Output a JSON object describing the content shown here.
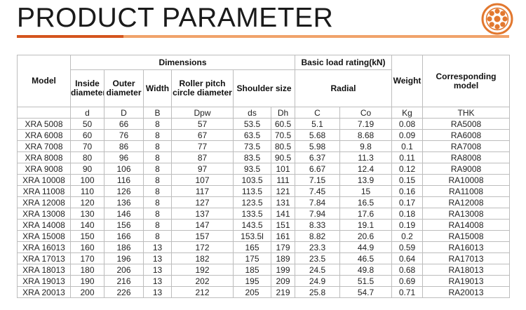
{
  "header": {
    "title": "PRODUCT PARAMETER",
    "accent_dark": "#d4551e",
    "accent_light": "#f0a36b",
    "logo_icon": "orange-bearing-logo-icon"
  },
  "table": {
    "group_headers": {
      "model": "Model",
      "dimensions": "Dimensions",
      "basic_load": "Basic load rating(kN)",
      "weight": "Weight",
      "corresponding": "Corresponding model"
    },
    "sub_headers": {
      "inside": "Inside diameter",
      "outer": "Outer diameter",
      "width": "Width",
      "roller": "Roller pitch circle diameter",
      "shoulder": "Shoulder size",
      "radial": "Radial"
    },
    "symbols": [
      "d",
      "D",
      "B",
      "Dpw",
      "ds",
      "Dh",
      "C",
      "Co",
      "Kg",
      "THK"
    ],
    "rows": [
      [
        "XRA 5008",
        "50",
        "66",
        "8",
        "57",
        "53.5",
        "60.5",
        "5.1",
        "7.19",
        "0.08",
        "RA5008"
      ],
      [
        "XRA 6008",
        "60",
        "76",
        "8",
        "67",
        "63.5",
        "70.5",
        "5.68",
        "8.68",
        "0.09",
        "RA6008"
      ],
      [
        "XRA 7008",
        "70",
        "86",
        "8",
        "77",
        "73.5",
        "80.5",
        "5.98",
        "9.8",
        "0.1",
        "RA7008"
      ],
      [
        "XRA 8008",
        "80",
        "96",
        "8",
        "87",
        "83.5",
        "90.5",
        "6.37",
        "11.3",
        "0.11",
        "RA8008"
      ],
      [
        "XRA 9008",
        "90",
        "106",
        "8",
        "97",
        "93.5",
        "101",
        "6.67",
        "12.4",
        "0.12",
        "RA9008"
      ],
      [
        "XRA 10008",
        "100",
        "116",
        "8",
        "107",
        "103.5",
        "111",
        "7.15",
        "13.9",
        "0.15",
        "RA10008"
      ],
      [
        "XRA 11008",
        "110",
        "126",
        "8",
        "117",
        "113.5",
        "121",
        "7.45",
        "15",
        "0.16",
        "RA11008"
      ],
      [
        "XRA 12008",
        "120",
        "136",
        "8",
        "127",
        "123.5",
        "131",
        "7.84",
        "16.5",
        "0.17",
        "RA12008"
      ],
      [
        "XRA 13008",
        "130",
        "146",
        "8",
        "137",
        "133.5",
        "141",
        "7.94",
        "17.6",
        "0.18",
        "RA13008"
      ],
      [
        "XRA 14008",
        "140",
        "156",
        "8",
        "147",
        "143.5",
        "151",
        "8.33",
        "19.1",
        "0.19",
        "RA14008"
      ],
      [
        "XRA 15008",
        "150",
        "166",
        "8",
        "157",
        "153.5l",
        "161",
        "8.82",
        "20.6",
        "0.2",
        "RA15008"
      ],
      [
        "XRA 16013",
        "160",
        "186",
        "13",
        "172",
        "165",
        "179",
        "23.3",
        "44.9",
        "0.59",
        "RA16013"
      ],
      [
        "XRA 17013",
        "170",
        "196",
        "13",
        "182",
        "175",
        "189",
        "23.5",
        "46.5",
        "0.64",
        "RA17013"
      ],
      [
        "XRA 18013",
        "180",
        "206",
        "13",
        "192",
        "185",
        "199",
        "24.5",
        "49.8",
        "0.68",
        "RA18013"
      ],
      [
        "XRA 19013",
        "190",
        "216",
        "13",
        "202",
        "195",
        "209",
        "24.9",
        "51.5",
        "0.69",
        "RA19013"
      ],
      [
        "XRA 20013",
        "200",
        "226",
        "13",
        "212",
        "205",
        "219",
        "25.8",
        "54.7",
        "0.71",
        "RA20013"
      ]
    ]
  }
}
